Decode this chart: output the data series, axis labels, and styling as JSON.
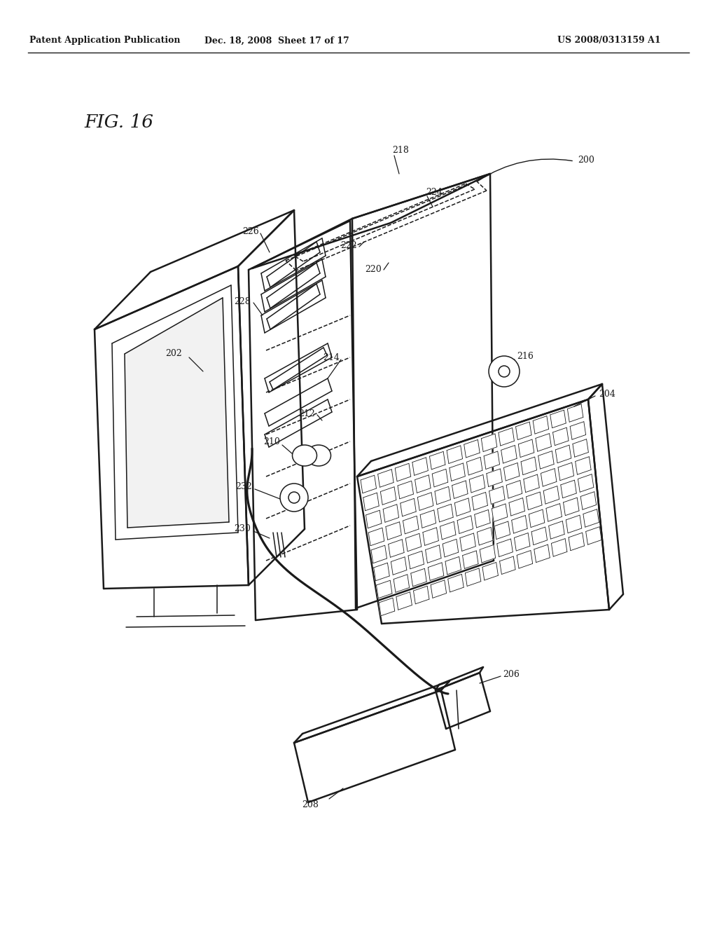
{
  "header_left": "Patent Application Publication",
  "header_mid": "Dec. 18, 2008  Sheet 17 of 17",
  "header_right": "US 2008/0313159 A1",
  "fig_label": "FIG. 16",
  "bg_color": "#ffffff",
  "line_color": "#1a1a1a",
  "lw_main": 1.8,
  "lw_thin": 1.1,
  "lw_thick": 2.2
}
